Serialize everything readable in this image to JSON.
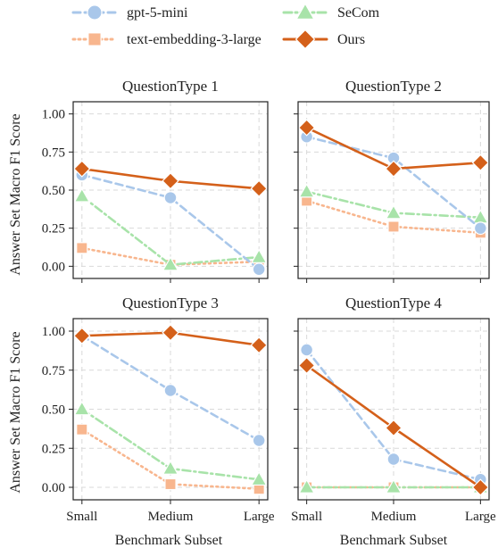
{
  "legend": {
    "placement": "top",
    "entries": [
      {
        "key": "gpt",
        "label": "gpt-5-mini"
      },
      {
        "key": "emb",
        "label": "text-embedding-3-large"
      },
      {
        "key": "secom",
        "label": "SeCom"
      },
      {
        "key": "ours",
        "label": "Ours"
      }
    ]
  },
  "shared": {
    "ylabel": "Answer Set Macro F1 Score",
    "xlabel": "Benchmark Subset"
  },
  "chart_data": [
    {
      "type": "line",
      "title": "QuestionType 1",
      "categories": [
        "Small",
        "Medium",
        "Large"
      ],
      "ylim": [
        -0.08,
        1.08
      ],
      "yticks": [
        "0.00",
        "0.25",
        "0.50",
        "0.75",
        "1.00"
      ],
      "grid": true,
      "series": [
        {
          "key": "gpt",
          "name": "gpt-5-mini",
          "values": [
            0.6,
            0.45,
            -0.02
          ]
        },
        {
          "key": "emb",
          "name": "text-embedding-3-large",
          "values": [
            0.12,
            0.01,
            0.03
          ]
        },
        {
          "key": "secom",
          "name": "SeCom",
          "values": [
            0.46,
            0.01,
            0.06
          ]
        },
        {
          "key": "ours",
          "name": "Ours",
          "values": [
            0.64,
            0.56,
            0.51
          ]
        }
      ]
    },
    {
      "type": "line",
      "title": "QuestionType 2",
      "categories": [
        "Small",
        "Medium",
        "Large"
      ],
      "ylim": [
        -0.08,
        1.08
      ],
      "yticks": [
        "0.00",
        "0.25",
        "0.50",
        "0.75",
        "1.00"
      ],
      "grid": true,
      "series": [
        {
          "key": "gpt",
          "name": "gpt-5-mini",
          "values": [
            0.85,
            0.71,
            0.25
          ]
        },
        {
          "key": "emb",
          "name": "text-embedding-3-large",
          "values": [
            0.43,
            0.26,
            0.22
          ]
        },
        {
          "key": "secom",
          "name": "SeCom",
          "values": [
            0.49,
            0.35,
            0.32
          ]
        },
        {
          "key": "ours",
          "name": "Ours",
          "values": [
            0.91,
            0.64,
            0.68
          ]
        }
      ]
    },
    {
      "type": "line",
      "title": "QuestionType 3",
      "categories": [
        "Small",
        "Medium",
        "Large"
      ],
      "ylim": [
        -0.08,
        1.08
      ],
      "yticks": [
        "0.00",
        "0.25",
        "0.50",
        "0.75",
        "1.00"
      ],
      "grid": true,
      "series": [
        {
          "key": "gpt",
          "name": "gpt-5-mini",
          "values": [
            0.97,
            0.62,
            0.3
          ]
        },
        {
          "key": "emb",
          "name": "text-embedding-3-large",
          "values": [
            0.37,
            0.02,
            -0.01
          ]
        },
        {
          "key": "secom",
          "name": "SeCom",
          "values": [
            0.5,
            0.12,
            0.05
          ]
        },
        {
          "key": "ours",
          "name": "Ours",
          "values": [
            0.97,
            0.99,
            0.91
          ]
        }
      ]
    },
    {
      "type": "line",
      "title": "QuestionType 4",
      "categories": [
        "Small",
        "Medium",
        "Large"
      ],
      "ylim": [
        -0.08,
        1.08
      ],
      "yticks": [
        "0.00",
        "0.25",
        "0.50",
        "0.75",
        "1.00"
      ],
      "grid": true,
      "series": [
        {
          "key": "gpt",
          "name": "gpt-5-mini",
          "values": [
            0.88,
            0.18,
            0.05
          ]
        },
        {
          "key": "emb",
          "name": "text-embedding-3-large",
          "values": [
            0.0,
            0.0,
            0.0
          ]
        },
        {
          "key": "secom",
          "name": "SeCom",
          "values": [
            0.0,
            0.0,
            0.0
          ]
        },
        {
          "key": "ours",
          "name": "Ours",
          "values": [
            0.78,
            0.38,
            0.0
          ]
        }
      ]
    }
  ],
  "styles": {
    "gpt": {
      "color": "#a9c7ea",
      "dash": "dashed",
      "marker": "circle"
    },
    "emb": {
      "color": "#f8b68e",
      "dash": "dotted",
      "marker": "square"
    },
    "secom": {
      "color": "#a8e3a9",
      "dash": "dashdot",
      "marker": "triangle"
    },
    "ours": {
      "color": "#d4601a",
      "dash": "solid",
      "marker": "diamond"
    }
  }
}
